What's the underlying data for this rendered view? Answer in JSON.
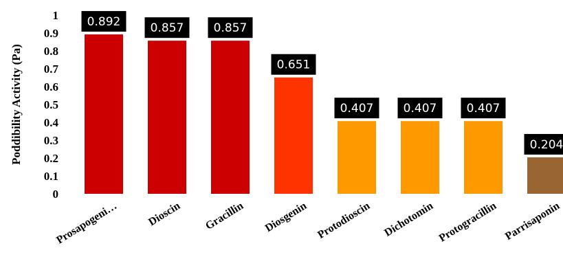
{
  "chart_data": {
    "type": "bar",
    "title": "",
    "xlabel": "",
    "ylabel": "Poddibility Activity (Pa)",
    "ylim": [
      0,
      1
    ],
    "yticks": [
      "0",
      "0.1",
      "0.2",
      "0.3",
      "0.4",
      "0.5",
      "0.6",
      "0.7",
      "0.8",
      "0.9",
      "1"
    ],
    "grid": false,
    "legend": "none",
    "categories": [
      "Prosapogeni…",
      "Dioscin",
      "Gracillin",
      "Diosgenin",
      "Protodioscin",
      "Dichotomin",
      "Protogracillin",
      "Parrisaponin"
    ],
    "values": [
      0.892,
      0.857,
      0.857,
      0.651,
      0.407,
      0.407,
      0.407,
      0.204
    ],
    "data_labels": [
      "0.892",
      "0.857",
      "0.857",
      "0.651",
      "0.407",
      "0.407",
      "0.407",
      "0.204"
    ],
    "bar_colors": [
      "#cc0000",
      "#cc0000",
      "#cc0000",
      "#ff3300",
      "#ff9900",
      "#ff9900",
      "#ff9900",
      "#996633"
    ],
    "label_box_color": "#000000",
    "label_text_color": "#ffffff"
  }
}
